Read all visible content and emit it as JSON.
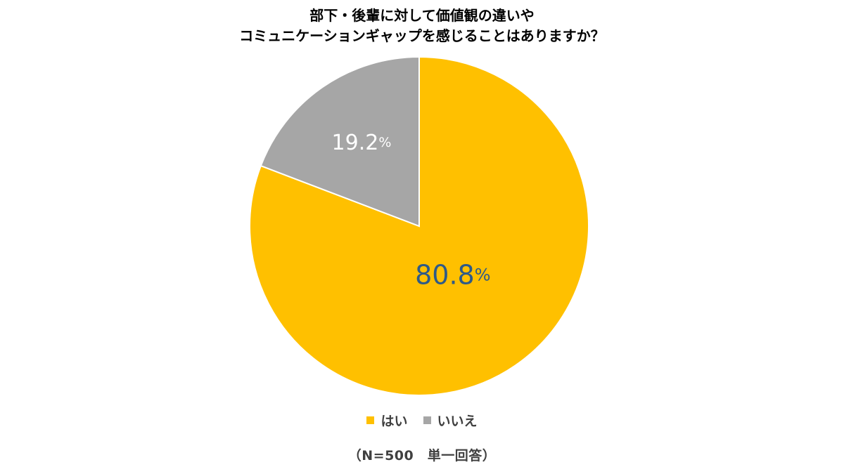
{
  "chart_data": {
    "type": "pie",
    "title": "部下・後輩に対して価値観の違いやコミュニケーションギャップを感じることはありますか？",
    "title_lines": [
      "部下・後輩に対して価値観の違いや",
      "コミュニケーションギャップを感じることはありますか？"
    ],
    "slices": [
      {
        "name": "はい",
        "value": 80.8,
        "label": "80.8",
        "unit": "%",
        "color": "#FFC000",
        "label_color": "#2E5A87"
      },
      {
        "name": "いいえ",
        "value": 19.2,
        "label": "19.2",
        "unit": "%",
        "color": "#A6A6A6",
        "label_color": "#FFFFFF"
      }
    ],
    "legend_position": "bottom",
    "note": "（N=500　単一回答）"
  }
}
